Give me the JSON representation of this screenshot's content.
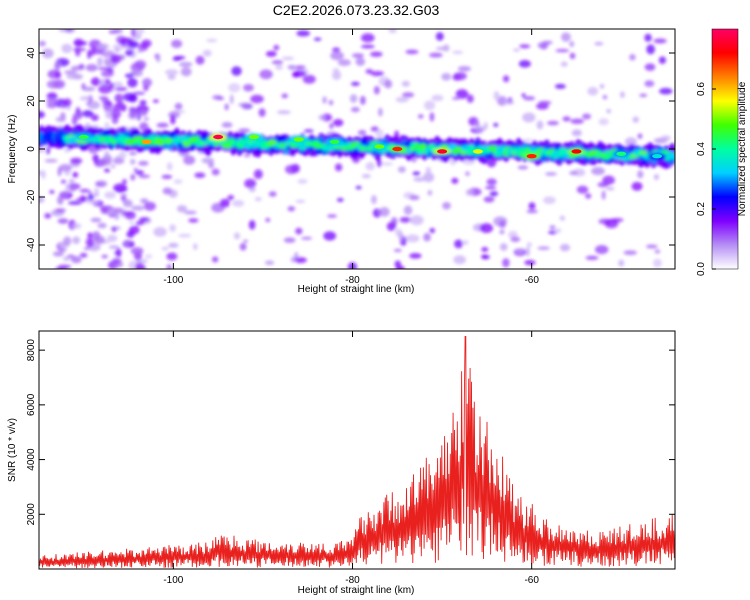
{
  "title": "C2E2.2026.073.23.32.G03",
  "chart_data": [
    {
      "type": "heatmap",
      "xlabel": "Height of straight line (km)",
      "ylabel": "Frequency (Hz)",
      "xlim": [
        -115,
        -44
      ],
      "ylim": [
        -50,
        50
      ],
      "xticks": [
        -100,
        -80,
        -60
      ],
      "yticks": [
        -40,
        -20,
        0,
        20,
        40
      ],
      "colorbar": {
        "label": "Normalized spectral amplitude",
        "range": [
          0,
          0.8
        ],
        "ticks": [
          "0.0",
          "0.2",
          "0.4",
          "0.6"
        ],
        "tick_values": [
          0,
          0.2,
          0.4,
          0.6
        ],
        "colors": [
          "#ffffff",
          "#b58ff5",
          "#7f00ff",
          "#0000ff",
          "#00d0ff",
          "#00ffa0",
          "#40ff00",
          "#ffff00",
          "#ff8000",
          "#ff0000",
          "#ff0066"
        ]
      },
      "band": {
        "center_freq_start_hz": 5,
        "center_freq_end_hz": -3,
        "half_width_hz": 5
      },
      "hotspots": [
        {
          "x": -110,
          "y": 5,
          "v": 0.45
        },
        {
          "x": -103,
          "y": 3,
          "v": 0.62
        },
        {
          "x": -95,
          "y": 5,
          "v": 0.78
        },
        {
          "x": -91,
          "y": 5,
          "v": 0.5
        },
        {
          "x": -86,
          "y": 4,
          "v": 0.5
        },
        {
          "x": -82,
          "y": 3,
          "v": 0.45
        },
        {
          "x": -77,
          "y": 1,
          "v": 0.5
        },
        {
          "x": -75,
          "y": 0,
          "v": 0.7
        },
        {
          "x": -70,
          "y": -1,
          "v": 0.75
        },
        {
          "x": -66,
          "y": -1,
          "v": 0.55
        },
        {
          "x": -60,
          "y": -3,
          "v": 0.7
        },
        {
          "x": -55,
          "y": -1,
          "v": 0.72
        },
        {
          "x": -50,
          "y": -2,
          "v": 0.42
        },
        {
          "x": -46,
          "y": -3,
          "v": 0.35
        }
      ]
    },
    {
      "type": "line",
      "xlabel": "Height of straight line (km)",
      "ylabel": "SNR (10 * v/v)",
      "xlim": [
        -115,
        -44
      ],
      "ylim": [
        0,
        8700
      ],
      "xticks": [
        -100,
        -80,
        -60
      ],
      "yticks": [
        2000,
        4000,
        6000,
        8000
      ],
      "color": "#e8211f",
      "peak": {
        "x": -67.4,
        "y": 8500
      },
      "envelope": [
        {
          "x": -115,
          "y": 500
        },
        {
          "x": -105,
          "y": 750
        },
        {
          "x": -96,
          "y": 1000
        },
        {
          "x": -95,
          "y": 1350
        },
        {
          "x": -90,
          "y": 1050
        },
        {
          "x": -82,
          "y": 1000
        },
        {
          "x": -80,
          "y": 1100
        },
        {
          "x": -79,
          "y": 2200
        },
        {
          "x": -76,
          "y": 2800
        },
        {
          "x": -74,
          "y": 3200
        },
        {
          "x": -71,
          "y": 4500
        },
        {
          "x": -69,
          "y": 5500
        },
        {
          "x": -67.4,
          "y": 8500
        },
        {
          "x": -66,
          "y": 5800
        },
        {
          "x": -64,
          "y": 5000
        },
        {
          "x": -62,
          "y": 3000
        },
        {
          "x": -58,
          "y": 1800
        },
        {
          "x": -53,
          "y": 1400
        },
        {
          "x": -48,
          "y": 1700
        },
        {
          "x": -45,
          "y": 2000
        },
        {
          "x": -44,
          "y": 2500
        }
      ]
    }
  ]
}
